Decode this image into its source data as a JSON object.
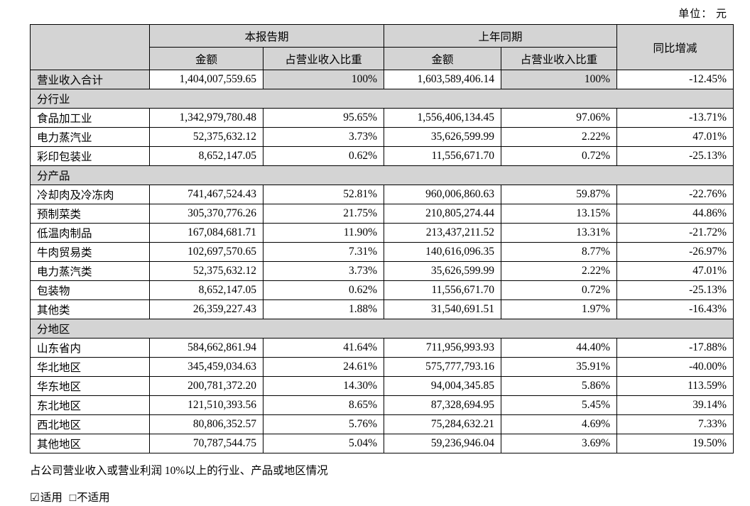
{
  "unit_label": "单位： 元",
  "table": {
    "headers": {
      "current_period": "本报告期",
      "prior_period": "上年同期",
      "yoy_change": "同比增减",
      "amount_current": "金额",
      "pct_current": "占营业收入比重",
      "amount_prior": "金额",
      "pct_prior": "占营业收入比重"
    },
    "rows": [
      {
        "type": "total",
        "label": "营业收入合计",
        "cur_amount": "1,404,007,559.65",
        "cur_pct": "100%",
        "prior_amount": "1,603,589,406.14",
        "prior_pct": "100%",
        "change": "-12.45%"
      },
      {
        "type": "section",
        "label": "分行业"
      },
      {
        "type": "data",
        "label": "食品加工业",
        "cur_amount": "1,342,979,780.48",
        "cur_pct": "95.65%",
        "prior_amount": "1,556,406,134.45",
        "prior_pct": "97.06%",
        "change": "-13.71%"
      },
      {
        "type": "data",
        "label": "电力蒸汽业",
        "cur_amount": "52,375,632.12",
        "cur_pct": "3.73%",
        "prior_amount": "35,626,599.99",
        "prior_pct": "2.22%",
        "change": "47.01%"
      },
      {
        "type": "data",
        "label": "彩印包装业",
        "cur_amount": "8,652,147.05",
        "cur_pct": "0.62%",
        "prior_amount": "11,556,671.70",
        "prior_pct": "0.72%",
        "change": "-25.13%"
      },
      {
        "type": "section",
        "label": "分产品"
      },
      {
        "type": "data",
        "label": "冷却肉及冷冻肉",
        "cur_amount": "741,467,524.43",
        "cur_pct": "52.81%",
        "prior_amount": "960,006,860.63",
        "prior_pct": "59.87%",
        "change": "-22.76%"
      },
      {
        "type": "data",
        "label": "预制菜类",
        "cur_amount": "305,370,776.26",
        "cur_pct": "21.75%",
        "prior_amount": "210,805,274.44",
        "prior_pct": "13.15%",
        "change": "44.86%"
      },
      {
        "type": "data",
        "label": "低温肉制品",
        "cur_amount": "167,084,681.71",
        "cur_pct": "11.90%",
        "prior_amount": "213,437,211.52",
        "prior_pct": "13.31%",
        "change": "-21.72%"
      },
      {
        "type": "data",
        "label": "牛肉贸易类",
        "cur_amount": "102,697,570.65",
        "cur_pct": "7.31%",
        "prior_amount": "140,616,096.35",
        "prior_pct": "8.77%",
        "change": "-26.97%"
      },
      {
        "type": "data",
        "label": "电力蒸汽类",
        "cur_amount": "52,375,632.12",
        "cur_pct": "3.73%",
        "prior_amount": "35,626,599.99",
        "prior_pct": "2.22%",
        "change": "47.01%"
      },
      {
        "type": "data",
        "label": "包装物",
        "cur_amount": "8,652,147.05",
        "cur_pct": "0.62%",
        "prior_amount": "11,556,671.70",
        "prior_pct": "0.72%",
        "change": "-25.13%"
      },
      {
        "type": "data",
        "label": "其他类",
        "cur_amount": "26,359,227.43",
        "cur_pct": "1.88%",
        "prior_amount": "31,540,691.51",
        "prior_pct": "1.97%",
        "change": "-16.43%"
      },
      {
        "type": "section",
        "label": "分地区"
      },
      {
        "type": "data",
        "label": "山东省内",
        "cur_amount": "584,662,861.94",
        "cur_pct": "41.64%",
        "prior_amount": "711,956,993.93",
        "prior_pct": "44.40%",
        "change": "-17.88%"
      },
      {
        "type": "data",
        "label": "华北地区",
        "cur_amount": "345,459,034.63",
        "cur_pct": "24.61%",
        "prior_amount": "575,777,793.16",
        "prior_pct": "35.91%",
        "change": "-40.00%"
      },
      {
        "type": "data",
        "label": "华东地区",
        "cur_amount": "200,781,372.20",
        "cur_pct": "14.30%",
        "prior_amount": "94,004,345.85",
        "prior_pct": "5.86%",
        "change": "113.59%"
      },
      {
        "type": "data",
        "label": "东北地区",
        "cur_amount": "121,510,393.56",
        "cur_pct": "8.65%",
        "prior_amount": "87,328,694.95",
        "prior_pct": "5.45%",
        "change": "39.14%"
      },
      {
        "type": "data",
        "label": "西北地区",
        "cur_amount": "80,806,352.57",
        "cur_pct": "5.76%",
        "prior_amount": "75,284,632.21",
        "prior_pct": "4.69%",
        "change": "7.33%"
      },
      {
        "type": "data",
        "label": "其他地区",
        "cur_amount": "70,787,544.75",
        "cur_pct": "5.04%",
        "prior_amount": "59,236,946.04",
        "prior_pct": "3.69%",
        "change": "19.50%"
      }
    ]
  },
  "footer": {
    "note": "占公司营业收入或营业利润 10%以上的行业、产品或地区情况",
    "applicable": {
      "checkbox": "☑",
      "label": "适用"
    },
    "not_applicable": {
      "checkbox": "□",
      "label": "不适用"
    }
  },
  "colors": {
    "header_fill": "#d4d4d4",
    "border": "#000000",
    "text": "#000000"
  }
}
